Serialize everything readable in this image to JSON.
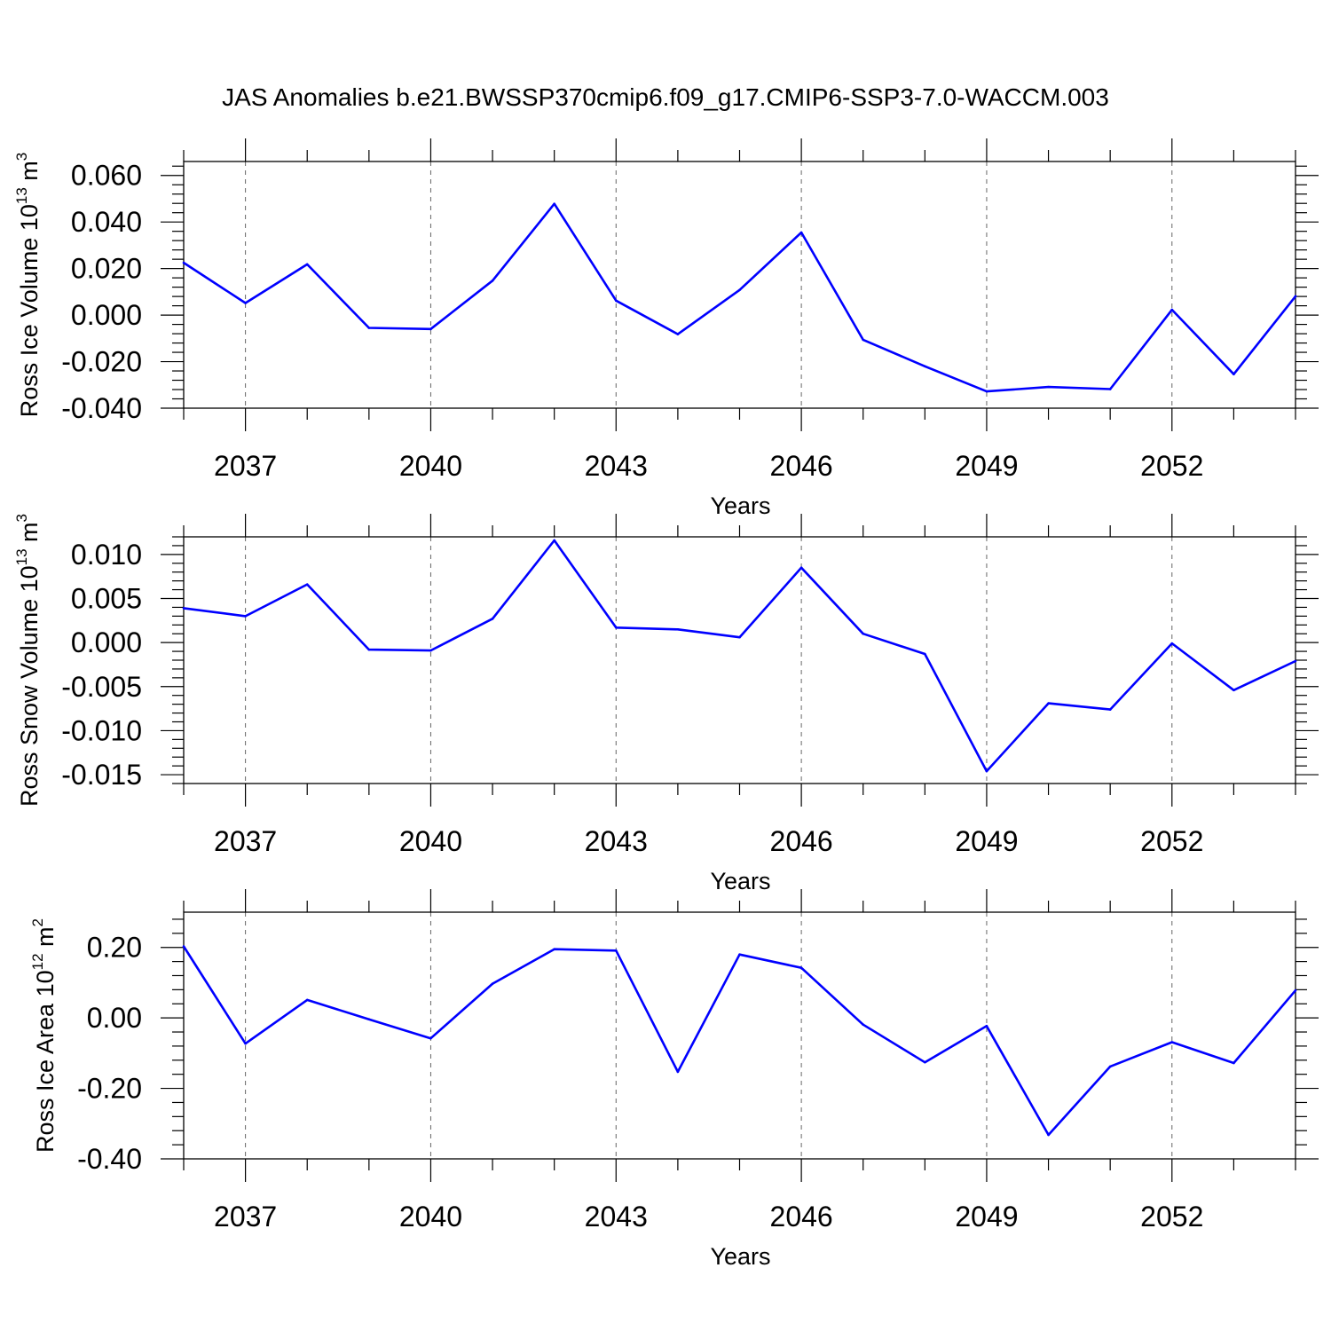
{
  "figure_title": "JAS Anomalies b.e21.BWSSP370cmip6.f09_g17.CMIP6-SSP3-7.0-WACCM.003",
  "colors": {
    "line": "#0000ff",
    "grid": "#666666",
    "axis": "#000000"
  },
  "chart_data": [
    {
      "type": "line",
      "title": "",
      "xlabel": "Years",
      "ylabel": {
        "main": "Ross Ice Volume 10",
        "sup": "13",
        "mid": " m",
        "sup2": "3"
      },
      "xlim": [
        2036,
        2054
      ],
      "ylim": [
        -0.04,
        0.066
      ],
      "xticks": [
        2037,
        2040,
        2043,
        2046,
        2049,
        2052
      ],
      "yticks": [
        -0.04,
        -0.02,
        0.0,
        0.02,
        0.04,
        0.06
      ],
      "ytick_labels": [
        "-0.040",
        "-0.020",
        "0.000",
        "0.020",
        "0.040",
        "0.060"
      ],
      "grid": "vertical dashed at labeled years",
      "x": [
        2036,
        2037,
        2038,
        2039,
        2040,
        2041,
        2042,
        2043,
        2044,
        2045,
        2046,
        2047,
        2048,
        2049,
        2050,
        2051,
        2052,
        2053,
        2054
      ],
      "values": [
        0.0225,
        0.0052,
        0.0218,
        -0.0055,
        -0.006,
        0.0148,
        0.0478,
        0.0062,
        -0.0082,
        0.0108,
        0.0355,
        -0.0106,
        -0.022,
        -0.0328,
        -0.0309,
        -0.0318,
        0.0023,
        -0.0254,
        0.0081
      ]
    },
    {
      "type": "line",
      "title": "",
      "xlabel": "Years",
      "ylabel": {
        "main": "Ross Snow Volume 10",
        "sup": "13",
        "mid": " m",
        "sup2": "3"
      },
      "xlim": [
        2036,
        2054
      ],
      "ylim": [
        -0.016,
        0.012
      ],
      "xticks": [
        2037,
        2040,
        2043,
        2046,
        2049,
        2052
      ],
      "yticks": [
        -0.015,
        -0.01,
        -0.005,
        0.0,
        0.005,
        0.01
      ],
      "ytick_labels": [
        "-0.015",
        "-0.010",
        "-0.005",
        "0.000",
        "0.005",
        "0.010"
      ],
      "grid": "vertical dashed at labeled years",
      "x": [
        2036,
        2037,
        2038,
        2039,
        2040,
        2041,
        2042,
        2043,
        2044,
        2045,
        2046,
        2047,
        2048,
        2049,
        2050,
        2051,
        2052,
        2053,
        2054
      ],
      "values": [
        0.0039,
        0.003,
        0.0066,
        -0.0008,
        -0.0009,
        0.0027,
        0.0116,
        0.0017,
        0.0015,
        0.0006,
        0.0085,
        0.001,
        -0.0013,
        -0.0146,
        -0.0069,
        -0.0076,
        -0.0001,
        -0.0054,
        -0.0021
      ]
    },
    {
      "type": "line",
      "title": "",
      "xlabel": "Years",
      "ylabel": {
        "main": "Ross Ice Area 10",
        "sup": "12",
        "mid": " m",
        "sup2": "2"
      },
      "xlim": [
        2036,
        2054
      ],
      "ylim": [
        -0.4,
        0.3
      ],
      "xticks": [
        2037,
        2040,
        2043,
        2046,
        2049,
        2052
      ],
      "yticks": [
        -0.4,
        -0.2,
        0.0,
        0.2
      ],
      "ytick_labels": [
        "-0.40",
        "-0.20",
        "0.00",
        "0.20"
      ],
      "grid": "vertical dashed at labeled years",
      "x": [
        2036,
        2037,
        2038,
        2039,
        2040,
        2041,
        2042,
        2043,
        2044,
        2045,
        2046,
        2047,
        2048,
        2049,
        2050,
        2051,
        2052,
        2053,
        2054
      ],
      "values": [
        0.203,
        -0.073,
        0.051,
        -0.004,
        -0.058,
        0.097,
        0.195,
        0.191,
        -0.153,
        0.18,
        0.142,
        -0.019,
        -0.126,
        -0.023,
        -0.332,
        -0.138,
        -0.069,
        -0.128,
        0.078
      ]
    }
  ]
}
